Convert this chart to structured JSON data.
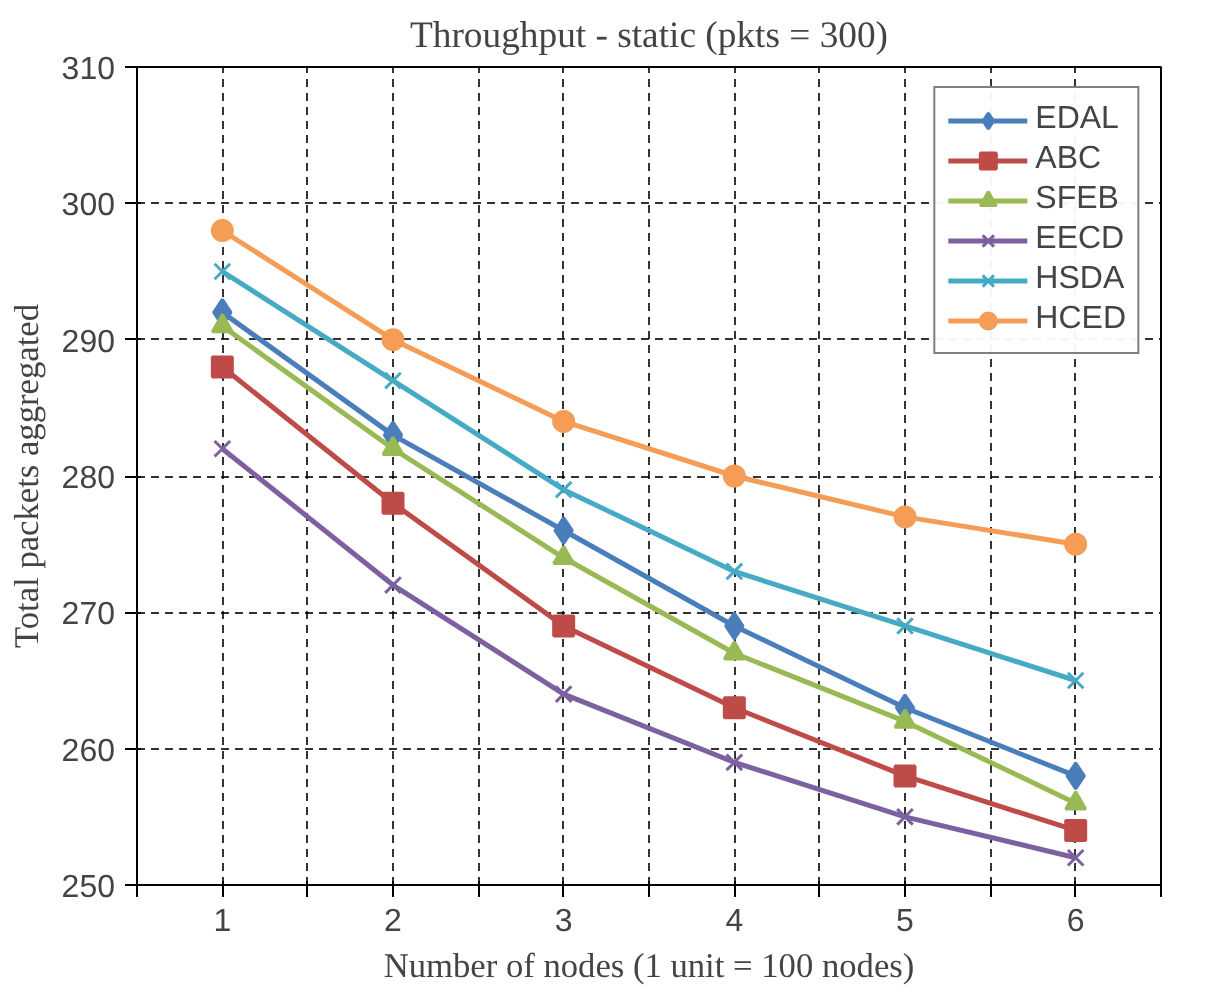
{
  "chart_data": {
    "type": "line",
    "title": "Throughput - static (pkts = 300)",
    "xlabel": "Number of nodes (1 unit = 100 nodes)",
    "ylabel": "Total packets aggregated",
    "x": [
      1,
      2,
      3,
      4,
      5,
      6
    ],
    "xlim": [
      0.5,
      6.5
    ],
    "xticks": [
      {
        "value": 0.5,
        "label": null
      },
      1,
      {
        "value": 1.5,
        "label": null
      },
      2,
      {
        "value": 2.5,
        "label": null
      },
      3,
      {
        "value": 3.5,
        "label": null
      },
      4,
      {
        "value": 4.5,
        "label": null
      },
      5,
      {
        "value": 5.5,
        "label": null
      },
      6,
      {
        "value": 6.5,
        "label": null
      }
    ],
    "ylim": [
      250,
      310
    ],
    "yticks": [
      250,
      260,
      270,
      280,
      290,
      300,
      310
    ],
    "grid": true,
    "legend": "top right",
    "series": [
      {
        "name": "EDAL",
        "color": "#4a7ebb",
        "marker": "diamond",
        "values": [
          292,
          283,
          276,
          269,
          263,
          258
        ]
      },
      {
        "name": "ABC",
        "color": "#be4b48",
        "marker": "square",
        "values": [
          288,
          278,
          269,
          263,
          258,
          254
        ]
      },
      {
        "name": "SFEB",
        "color": "#98b954",
        "marker": "triangle",
        "values": [
          291,
          282,
          274,
          267,
          262,
          256
        ]
      },
      {
        "name": "EECD",
        "color": "#7d60a0",
        "marker": "cross",
        "values": [
          282,
          272,
          264,
          259,
          255,
          252
        ]
      },
      {
        "name": "HSDA",
        "color": "#46aac5",
        "marker": "cross",
        "values": [
          295,
          287,
          279,
          273,
          269,
          265
        ]
      },
      {
        "name": "HCED",
        "color": "#f59d56",
        "marker": "circle",
        "values": [
          298,
          290,
          284,
          280,
          277,
          275
        ]
      }
    ]
  }
}
